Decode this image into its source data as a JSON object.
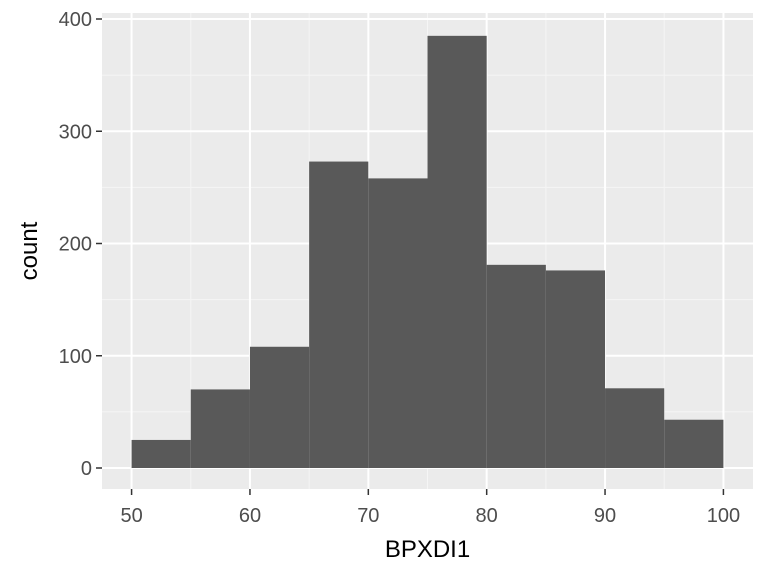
{
  "chart_data": {
    "type": "bar",
    "subtype": "histogram",
    "title": "",
    "xlabel": "BPXDI1",
    "ylabel": "count",
    "bin_edges": [
      50,
      55,
      60,
      65,
      70,
      75,
      80,
      85,
      90,
      95,
      100
    ],
    "values": [
      25,
      70,
      108,
      273,
      258,
      385,
      181,
      176,
      71,
      43
    ],
    "xlim": [
      47.5,
      102.5
    ],
    "ylim": [
      0,
      402
    ],
    "x_ticks": [
      50,
      60,
      70,
      80,
      90,
      100
    ],
    "y_ticks": [
      0,
      100,
      200,
      300,
      400
    ],
    "grid": true,
    "legend": "none",
    "colors": {
      "bar": "#595959",
      "panel": "#ebebeb",
      "grid_major": "#ffffff",
      "grid_minor": "#f5f5f5",
      "tick_text": "#4d4d4d",
      "tick_mark": "#333333",
      "axis_title": "#000000"
    }
  }
}
